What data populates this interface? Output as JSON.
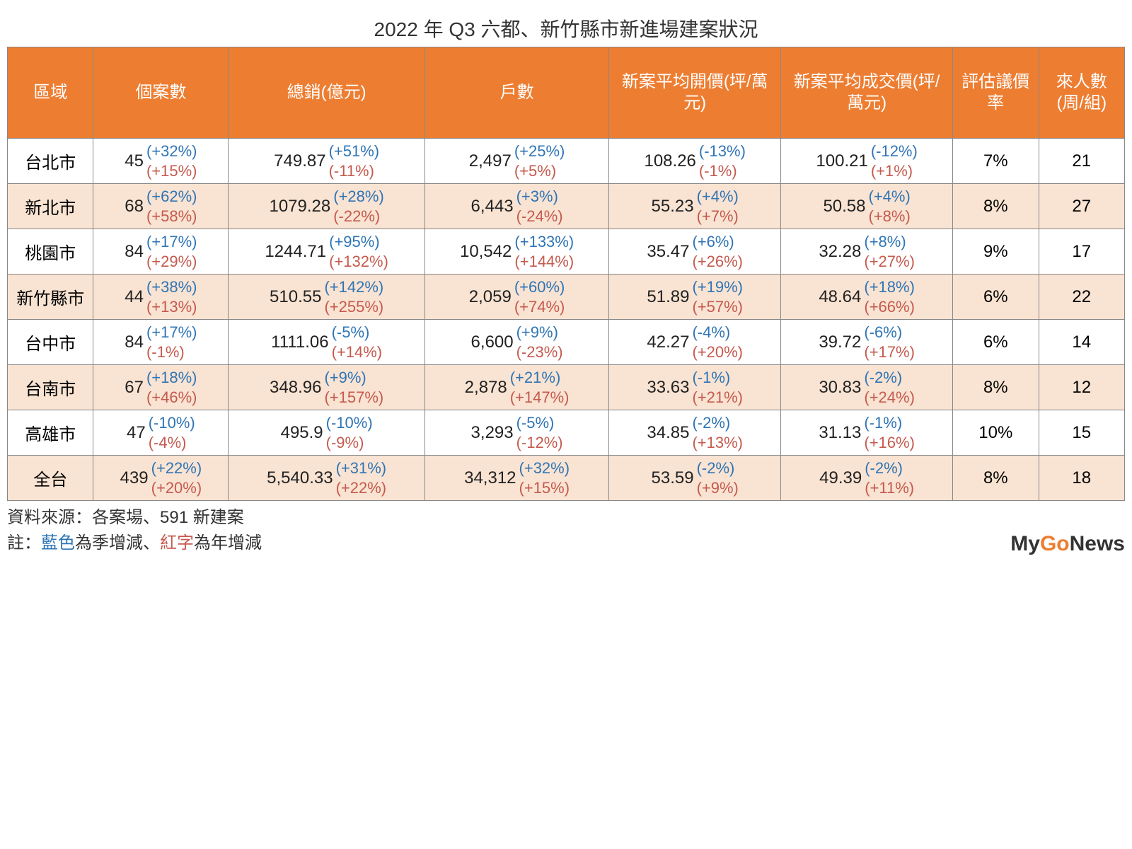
{
  "title": "2022 年 Q3 六都、新竹縣市新進場建案狀況",
  "columns": [
    "區域",
    "個案數",
    "總銷(億元)",
    "戶數",
    "新案平均開價(坪/萬元)",
    "新案平均成交價(坪/萬元)",
    "評估議價率",
    "來人數(周/組)"
  ],
  "colors": {
    "header_bg": "#ed7d31",
    "header_text": "#ffffff",
    "alt_row_bg": "#f9e3d2",
    "border": "#888888",
    "blue": "#2e75b6",
    "red": "#c55a4e",
    "text": "#222222"
  },
  "rows": [
    {
      "region": "台北市",
      "cells": [
        {
          "val": "45",
          "blue": "(+32%)",
          "red": "(+15%)"
        },
        {
          "val": "749.87",
          "blue": "(+51%)",
          "red": "(-11%)"
        },
        {
          "val": "2,497",
          "blue": "(+25%)",
          "red": "(+5%)"
        },
        {
          "val": "108.26",
          "blue": "(-13%)",
          "red": "(-1%)"
        },
        {
          "val": "100.21",
          "blue": "(-12%)",
          "red": "(+1%)"
        }
      ],
      "rate": "7%",
      "visitors": "21",
      "alt": false
    },
    {
      "region": "新北市",
      "cells": [
        {
          "val": "68",
          "blue": "(+62%)",
          "red": "(+58%)"
        },
        {
          "val": "1079.28",
          "blue": "(+28%)",
          "red": "(-22%)"
        },
        {
          "val": "6,443",
          "blue": "(+3%)",
          "red": "(-24%)"
        },
        {
          "val": "55.23",
          "blue": "(+4%)",
          "red": "(+7%)"
        },
        {
          "val": "50.58",
          "blue": "(+4%)",
          "red": "(+8%)"
        }
      ],
      "rate": "8%",
      "visitors": "27",
      "alt": true
    },
    {
      "region": "桃園市",
      "cells": [
        {
          "val": "84",
          "blue": "(+17%)",
          "red": "(+29%)"
        },
        {
          "val": "1244.71",
          "blue": "(+95%)",
          "red": "(+132%)"
        },
        {
          "val": "10,542",
          "blue": "(+133%)",
          "red": "(+144%)"
        },
        {
          "val": "35.47",
          "blue": "(+6%)",
          "red": "(+26%)"
        },
        {
          "val": "32.28",
          "blue": "(+8%)",
          "red": "(+27%)"
        }
      ],
      "rate": "9%",
      "visitors": "17",
      "alt": false
    },
    {
      "region": "新竹縣市",
      "cells": [
        {
          "val": "44",
          "blue": "(+38%)",
          "red": "(+13%)"
        },
        {
          "val": "510.55",
          "blue": "(+142%)",
          "red": "(+255%)"
        },
        {
          "val": "2,059",
          "blue": "(+60%)",
          "red": "(+74%)"
        },
        {
          "val": "51.89",
          "blue": "(+19%)",
          "red": "(+57%)"
        },
        {
          "val": "48.64",
          "blue": "(+18%)",
          "red": "(+66%)"
        }
      ],
      "rate": "6%",
      "visitors": "22",
      "alt": true
    },
    {
      "region": "台中市",
      "cells": [
        {
          "val": "84",
          "blue": "(+17%)",
          "red": "(-1%)"
        },
        {
          "val": "1111.06",
          "blue": "(-5%)",
          "red": "(+14%)"
        },
        {
          "val": "6,600",
          "blue": "(+9%)",
          "red": "(-23%)"
        },
        {
          "val": "42.27",
          "blue": "(-4%)",
          "red": "(+20%)"
        },
        {
          "val": "39.72",
          "blue": "(-6%)",
          "red": "(+17%)"
        }
      ],
      "rate": "6%",
      "visitors": "14",
      "alt": false
    },
    {
      "region": "台南市",
      "cells": [
        {
          "val": "67",
          "blue": "(+18%)",
          "red": "(+46%)"
        },
        {
          "val": "348.96",
          "blue": "(+9%)",
          "red": "(+157%)"
        },
        {
          "val": "2,878",
          "blue": "(+21%)",
          "red": "(+147%)"
        },
        {
          "val": "33.63",
          "blue": "(-1%)",
          "red": "(+21%)"
        },
        {
          "val": "30.83",
          "blue": "(-2%)",
          "red": "(+24%)"
        }
      ],
      "rate": "8%",
      "visitors": "12",
      "alt": true
    },
    {
      "region": "高雄市",
      "cells": [
        {
          "val": "47",
          "blue": "(-10%)",
          "red": "(-4%)"
        },
        {
          "val": "495.9",
          "blue": "(-10%)",
          "red": "(-9%)"
        },
        {
          "val": "3,293",
          "blue": "(-5%)",
          "red": "(-12%)"
        },
        {
          "val": "34.85",
          "blue": "(-2%)",
          "red": "(+13%)"
        },
        {
          "val": "31.13",
          "blue": "(-1%)",
          "red": "(+16%)"
        }
      ],
      "rate": "10%",
      "visitors": "15",
      "alt": false
    },
    {
      "region": "全台",
      "cells": [
        {
          "val": "439",
          "blue": "(+22%)",
          "red": "(+20%)"
        },
        {
          "val": "5,540.33",
          "blue": "(+31%)",
          "red": "(+22%)"
        },
        {
          "val": "34,312",
          "blue": "(+32%)",
          "red": "(+15%)"
        },
        {
          "val": "53.59",
          "blue": "(-2%)",
          "red": "(+9%)"
        },
        {
          "val": "49.39",
          "blue": "(-2%)",
          "red": "(+11%)"
        }
      ],
      "rate": "8%",
      "visitors": "18",
      "alt": true
    }
  ],
  "source_line": "資料來源：各案場、591 新建案",
  "legend": {
    "prefix": "註：",
    "blue_label": "藍色",
    "blue_desc": "為季增減、",
    "red_label": "紅字",
    "red_desc": "為年增減"
  },
  "logo": {
    "my": "My",
    "go": "Go",
    "news": "News"
  }
}
